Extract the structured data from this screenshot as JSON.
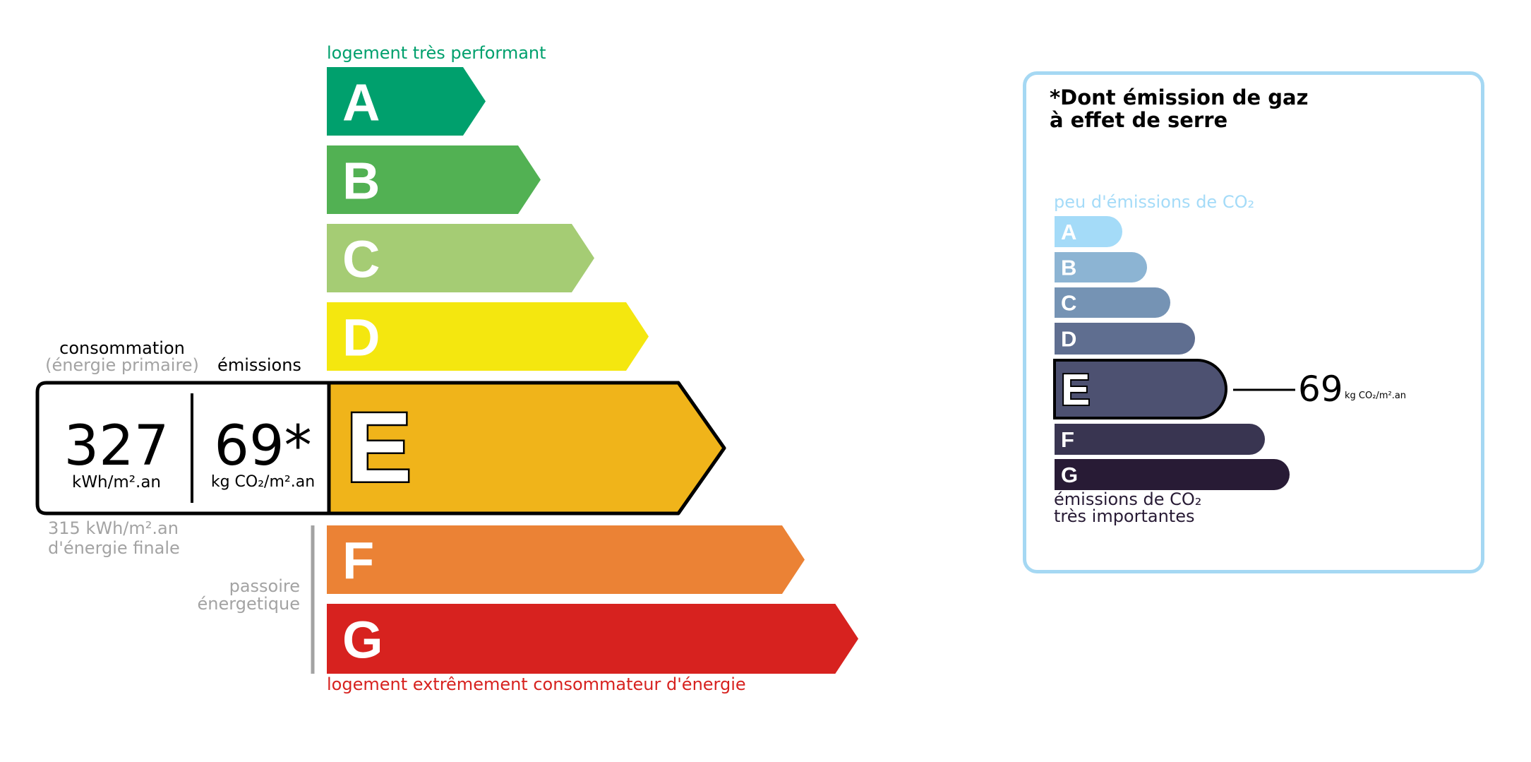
{
  "energy": {
    "top_label": "logement très performant",
    "bottom_label": "logement extrêmement consommateur d'énergie",
    "classes": [
      {
        "letter": "A",
        "color": "#00a06d"
      },
      {
        "letter": "B",
        "color": "#52b153"
      },
      {
        "letter": "C",
        "color": "#a5cc74"
      },
      {
        "letter": "D",
        "color": "#f4e70f"
      },
      {
        "letter": "E",
        "color": "#f0b41a"
      },
      {
        "letter": "F",
        "color": "#eb8235"
      },
      {
        "letter": "G",
        "color": "#d7221f"
      }
    ],
    "current_class": "E",
    "consumption_label": "consommation",
    "consumption_sublabel": "(énergie primaire)",
    "emissions_label": "émissions",
    "consumption_value": "327",
    "consumption_unit": "kWh/m².an",
    "emissions_value": "69*",
    "emissions_unit": "kg CO₂/m².an",
    "final_energy_line1": "315 kWh/m².an",
    "final_energy_line2": "d'énergie finale",
    "passoire_line1": "passoire",
    "passoire_line2": "énergetique"
  },
  "ges": {
    "title_line1": "*Dont émission de gaz",
    "title_line2": "à effet de serre",
    "top_label": "peu d'émissions de CO₂",
    "bottom_label_line1": "émissions de CO₂",
    "bottom_label_line2": "très importantes",
    "border_color": "#a5d8f3",
    "classes": [
      {
        "letter": "A",
        "color": "#a4dbf8"
      },
      {
        "letter": "B",
        "color": "#8cb4d3"
      },
      {
        "letter": "C",
        "color": "#7593b4"
      },
      {
        "letter": "D",
        "color": "#5f6e90"
      },
      {
        "letter": "E",
        "color": "#4d5171"
      },
      {
        "letter": "F",
        "color": "#393551"
      },
      {
        "letter": "G",
        "color": "#281b35"
      }
    ],
    "current_class": "E",
    "value": "69",
    "unit": "kg CO₂/m².an"
  }
}
